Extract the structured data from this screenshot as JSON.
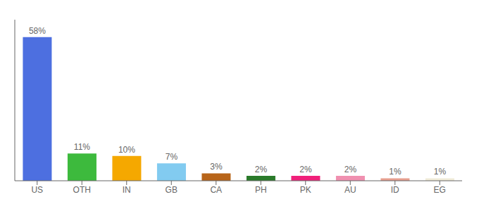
{
  "chart_data": {
    "type": "bar",
    "categories": [
      "US",
      "OTH",
      "IN",
      "GB",
      "CA",
      "PH",
      "PK",
      "AU",
      "ID",
      "EG"
    ],
    "values": [
      58,
      11,
      10,
      7,
      3,
      2,
      2,
      2,
      1,
      1
    ],
    "value_labels": [
      "58%",
      "11%",
      "10%",
      "7%",
      "3%",
      "2%",
      "2%",
      "2%",
      "1%",
      "1%"
    ],
    "colors": [
      "#4d6fe0",
      "#3dba3d",
      "#f5a800",
      "#82cbf0",
      "#b8651a",
      "#2a7a2a",
      "#f0207a",
      "#f090b0",
      "#e8a090",
      "#f0ecd8"
    ],
    "ylim": [
      0,
      65
    ],
    "data_labels": true,
    "tick_labels": "x",
    "grid": false
  }
}
